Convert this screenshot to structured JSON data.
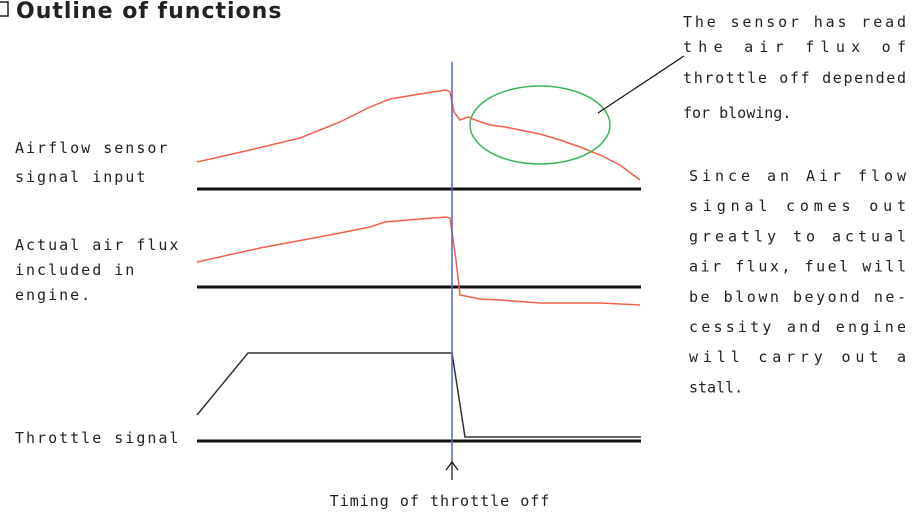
{
  "title": "Outline of functions",
  "rows": [
    {
      "label": [
        "Airflow sensor",
        "signal input"
      ]
    },
    {
      "label": [
        "Actual air flux",
        "included in",
        "engine."
      ]
    },
    {
      "label": [
        "Throttle signal"
      ]
    }
  ],
  "callout": [
    "The sensor has read",
    "the air flux of",
    "throttle off depended",
    "for blowing."
  ],
  "note": [
    "Since an Air flow",
    "signal comes out",
    "greatly to actual",
    "air flux, fuel will",
    "be blown beyond ne-",
    "cessity and engine",
    "will carry out a",
    "stall."
  ],
  "timing_label": "Timing of throttle off"
}
